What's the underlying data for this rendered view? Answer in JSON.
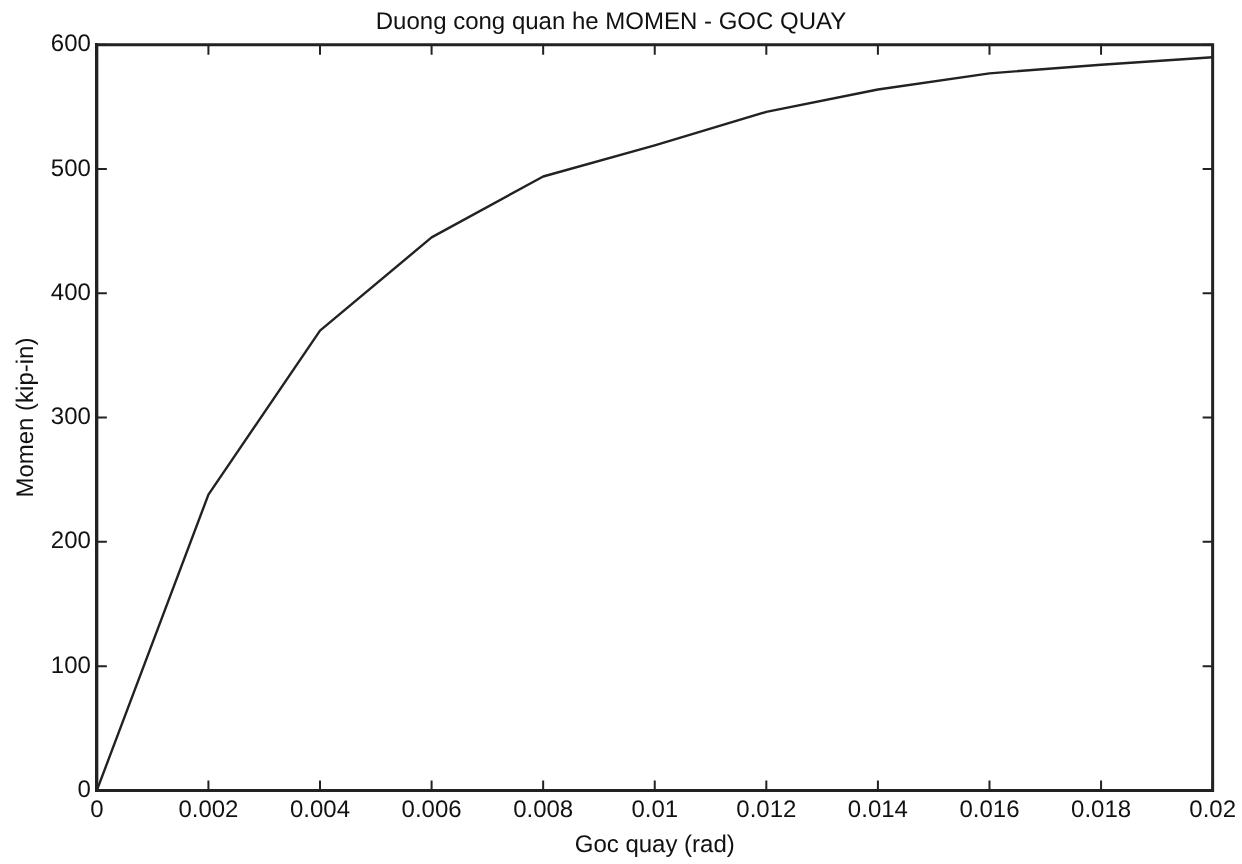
{
  "chart_data": {
    "type": "line",
    "title": "Duong cong quan he MOMEN - GOC QUAY",
    "xlabel": "Goc quay (rad)",
    "ylabel": "Momen (kip-in)",
    "x": [
      0,
      0.002,
      0.004,
      0.006,
      0.008,
      0.01,
      0.012,
      0.014,
      0.016,
      0.018,
      0.02
    ],
    "series": [
      {
        "color": "#222222",
        "values": [
          0,
          238,
          370,
          445,
          494,
          519,
          546,
          564,
          577,
          584,
          590
        ]
      }
    ],
    "xlim": [
      0,
      0.02
    ],
    "xticks": [
      0,
      0.002,
      0.004,
      0.006,
      0.008,
      0.01,
      0.012,
      0.014,
      0.016,
      0.018,
      0.02
    ],
    "ylim": [
      0,
      600
    ],
    "yticks": [
      0,
      100,
      200,
      300,
      400,
      500,
      600
    ],
    "grid": false,
    "legend": false,
    "marker": "none",
    "line_style": "solid"
  }
}
